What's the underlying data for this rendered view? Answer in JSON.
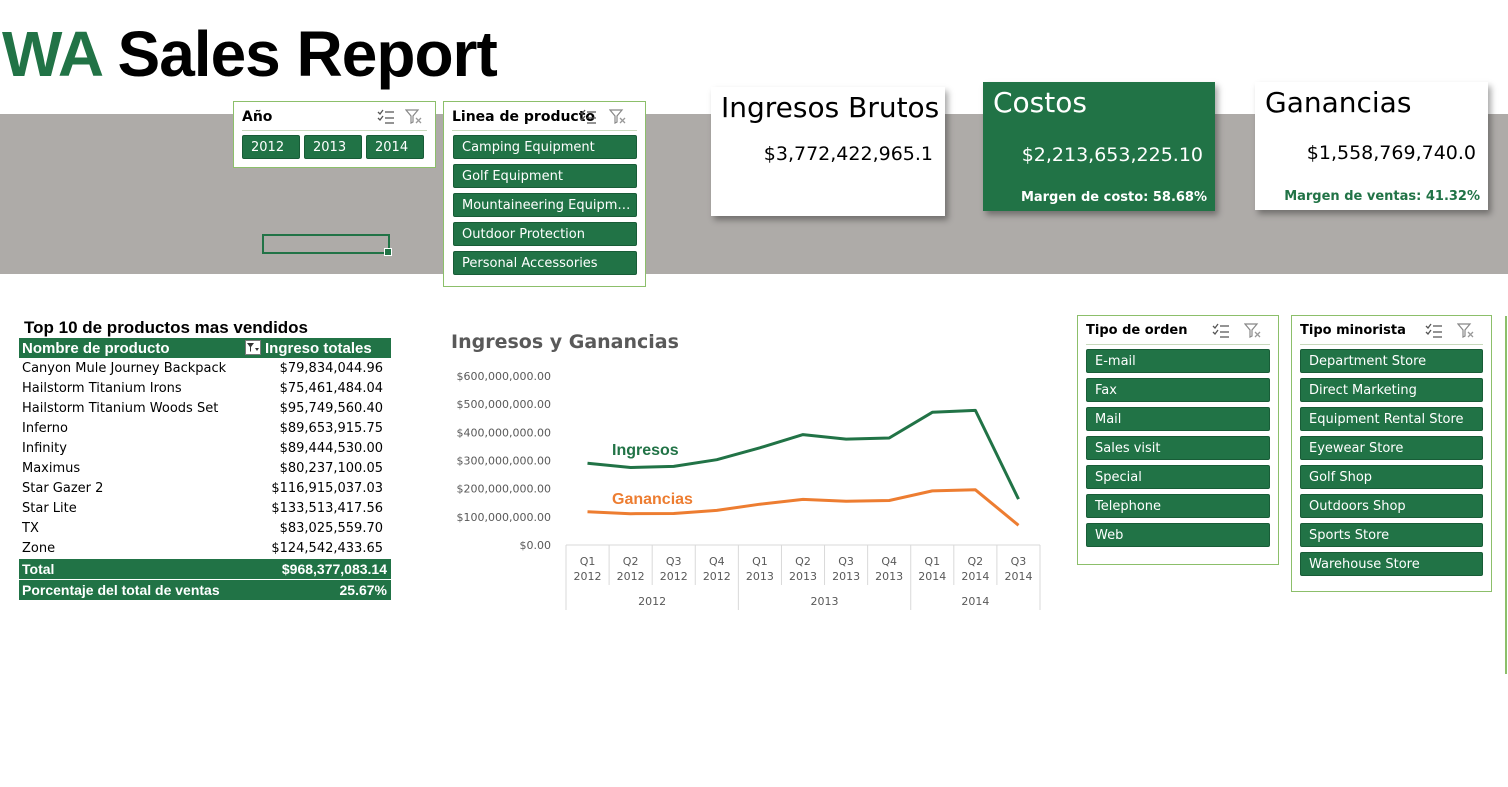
{
  "title": {
    "prefix": "WA",
    "main": "Sales Report"
  },
  "colors": {
    "brand_green": "#217346",
    "band_gray": "#aeaba8",
    "orange": "#ed7d31"
  },
  "slicers": {
    "anio": {
      "title": "Año",
      "items": [
        "2012",
        "2013",
        "2014"
      ]
    },
    "linea": {
      "title": "Linea de producto",
      "items": [
        "Camping Equipment",
        "Golf Equipment",
        "Mountaineering Equipment",
        "Outdoor Protection",
        "Personal Accessories"
      ]
    },
    "tipo_orden": {
      "title": "Tipo de orden",
      "items": [
        "E-mail",
        "Fax",
        "Mail",
        "Sales visit",
        "Special",
        "Telephone",
        "Web"
      ]
    },
    "tipo_minorista": {
      "title": "Tipo minorista",
      "items": [
        "Department Store",
        "Direct Marketing",
        "Equipment Rental Store",
        "Eyewear Store",
        "Golf Shop",
        "Outdoors Shop",
        "Sports Store",
        "Warehouse Store"
      ]
    }
  },
  "kpis": {
    "ingresos": {
      "title": "Ingresos Brutos",
      "value": "$3,772,422,965.1"
    },
    "costos": {
      "title": "Costos",
      "value": "$2,213,653,225.10",
      "note": "Margen de costo: 58.68%"
    },
    "ganancias": {
      "title": "Ganancias",
      "value": "$1,558,769,740.0",
      "note": "Margen de ventas: 41.32%"
    }
  },
  "top10": {
    "title": "Top 10 de productos mas vendidos",
    "headers": [
      "Nombre de producto",
      "Ingreso totales"
    ],
    "rows": [
      {
        "name": "Canyon Mule Journey Backpack",
        "value": "$79,834,044.96"
      },
      {
        "name": "Hailstorm Titanium Irons",
        "value": "$75,461,484.04"
      },
      {
        "name": "Hailstorm Titanium Woods Set",
        "value": "$95,749,560.40"
      },
      {
        "name": "Inferno",
        "value": "$89,653,915.75"
      },
      {
        "name": "Infinity",
        "value": "$89,444,530.00"
      },
      {
        "name": "Maximus",
        "value": "$80,237,100.05"
      },
      {
        "name": "Star Gazer 2",
        "value": "$116,915,037.03"
      },
      {
        "name": "Star Lite",
        "value": "$133,513,417.56"
      },
      {
        "name": "TX",
        "value": "$83,025,559.70"
      },
      {
        "name": "Zone",
        "value": "$124,542,433.65"
      }
    ],
    "total": {
      "label": "Total",
      "value": "$968,377,083.14"
    },
    "pct": {
      "label": "Porcentaje del total de ventas",
      "value": "25.67%"
    }
  },
  "chart_data": {
    "type": "line",
    "title": "Ingresos y Ganancias",
    "quarters": [
      "Q1",
      "Q2",
      "Q3",
      "Q4",
      "Q1",
      "Q2",
      "Q3",
      "Q4",
      "Q1",
      "Q2",
      "Q3"
    ],
    "years": [
      "2012",
      "2012",
      "2012",
      "2012",
      "2013",
      "2013",
      "2013",
      "2013",
      "2014",
      "2014",
      "2014"
    ],
    "year_groups": [
      "2012",
      "2013",
      "2014"
    ],
    "yticks": [
      "$600,000,000.00",
      "$500,000,000.00",
      "$400,000,000.00",
      "$300,000,000.00",
      "$200,000,000.00",
      "$100,000,000.00",
      "$0.00"
    ],
    "ylim": [
      0,
      600000000
    ],
    "series": [
      {
        "name": "Ingresos",
        "color": "#217346",
        "values": [
          290000000,
          275000000,
          279000000,
          303000000,
          345000000,
          392000000,
          376000000,
          380000000,
          471000000,
          478000000,
          163000000
        ]
      },
      {
        "name": "Ganancias",
        "color": "#ed7d31",
        "values": [
          118000000,
          111000000,
          112000000,
          123000000,
          145000000,
          162000000,
          155000000,
          158000000,
          192000000,
          196000000,
          70000000
        ]
      }
    ]
  }
}
